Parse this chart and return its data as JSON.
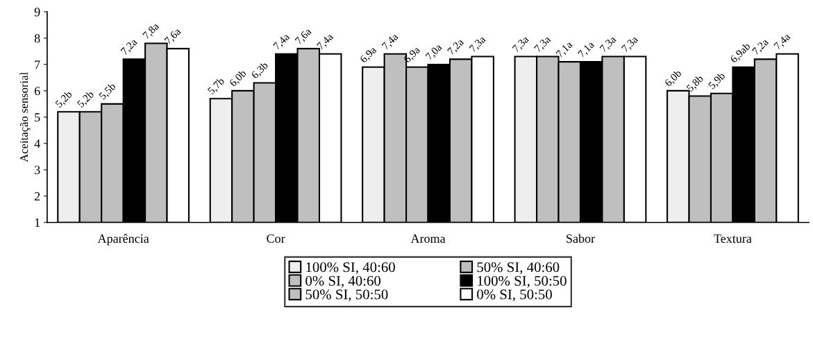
{
  "chart_data": {
    "type": "bar",
    "ylabel": "Aceitação sensorial",
    "categories": [
      "Aparência",
      "Cor",
      "Aroma",
      "Sabor",
      "Textura"
    ],
    "ylim": [
      1,
      9
    ],
    "yticks": [
      1,
      2,
      3,
      4,
      5,
      6,
      7,
      8,
      9
    ],
    "grid": false,
    "legend": "bottom",
    "series": [
      {
        "name": "100% SI, 40:60",
        "color": "#eeeeee",
        "values": [
          5.2,
          5.7,
          6.9,
          7.3,
          6.0
        ],
        "value_labels": [
          "5,2b",
          "5,7b",
          "6,9a",
          "7,3a",
          "6,0b"
        ]
      },
      {
        "name": "50% SI, 40:60",
        "color": "#bfbfbf",
        "values": [
          5.2,
          6.0,
          7.4,
          7.3,
          5.8
        ],
        "value_labels": [
          "5,2b",
          "6,0b",
          "7,4a",
          "7,3a",
          "5,8b"
        ]
      },
      {
        "name": "0% SI, 40:60",
        "color": "#bfbfbf",
        "values": [
          5.5,
          6.3,
          6.9,
          7.1,
          5.9
        ],
        "value_labels": [
          "5,5b",
          "6,3b",
          "6,9a",
          "7,1a",
          "5,9b"
        ]
      },
      {
        "name": "100% SI, 50:50",
        "color": "#000000",
        "values": [
          7.2,
          7.4,
          7.0,
          7.1,
          6.9
        ],
        "value_labels": [
          "7,2a",
          "7,4a",
          "7,0a",
          "7,1a",
          "6,9ab"
        ]
      },
      {
        "name": "50% SI, 50:50",
        "color": "#bfbfbf",
        "values": [
          7.8,
          7.6,
          7.2,
          7.3,
          7.2
        ],
        "value_labels": [
          "7,8a",
          "7,6a",
          "7,2a",
          "7,3a",
          "7,2a"
        ]
      },
      {
        "name": "0% SI, 50:50",
        "color": "#ffffff",
        "values": [
          7.6,
          7.4,
          7.3,
          7.3,
          7.4
        ],
        "value_labels": [
          "7,6a",
          "7,4a",
          "7,3a",
          "7,3a",
          "7,4a"
        ]
      }
    ]
  }
}
